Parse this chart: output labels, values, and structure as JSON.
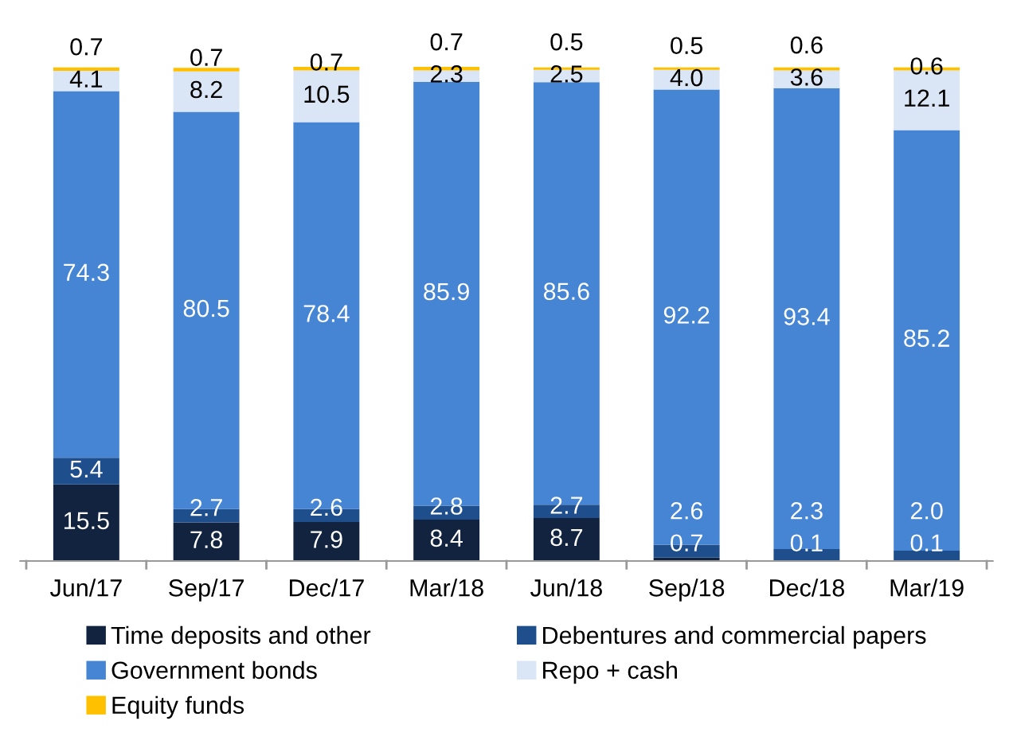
{
  "chart_data": {
    "type": "bar",
    "stacked": true,
    "legend": "bottom",
    "grid": false,
    "categories": [
      "Jun/17",
      "Sep/17",
      "Dec/17",
      "Mar/18",
      "Jun/18",
      "Sep/18",
      "Dec/18",
      "Mar/19"
    ],
    "series": [
      {
        "name": "Time deposits and other",
        "color": "#12233f",
        "values": [
          15.5,
          7.8,
          7.9,
          8.4,
          8.7,
          0.7,
          0.1,
          0.1
        ],
        "value_labels": [
          "15.5",
          "7.8",
          "7.9",
          "8.4",
          "8.7",
          "0.7",
          "0.1",
          "0.1"
        ]
      },
      {
        "name": "Debentures and commercial papers",
        "color": "#1f4e8c",
        "values": [
          5.4,
          2.7,
          2.6,
          2.8,
          2.7,
          2.6,
          2.3,
          2.0
        ],
        "value_labels": [
          "5.4",
          "2.7",
          "2.6",
          "2.8",
          "2.7",
          "2.6",
          "2.3",
          "2.0"
        ]
      },
      {
        "name": "Government bonds",
        "color": "#4585d4",
        "values": [
          74.3,
          80.5,
          78.4,
          85.9,
          85.6,
          92.2,
          93.4,
          85.2
        ],
        "value_labels": [
          "74.3",
          "80.5",
          "78.4",
          "85.9",
          "85.6",
          "92.2",
          "93.4",
          "85.2"
        ]
      },
      {
        "name": "Repo + cash",
        "color": "#dae6f5",
        "values": [
          4.1,
          8.2,
          10.5,
          2.3,
          2.5,
          4.0,
          3.6,
          12.1
        ],
        "value_labels": [
          "4.1",
          "8.2",
          "10.5",
          "2.3",
          "2.5",
          "4.0",
          "3.6",
          "12.1"
        ]
      },
      {
        "name": "Equity funds",
        "color": "#ffc000",
        "values": [
          0.7,
          0.7,
          0.7,
          0.7,
          0.5,
          0.5,
          0.6,
          0.6
        ],
        "value_labels": [
          "0.7",
          "0.7",
          "0.7",
          "0.7",
          "0.5",
          "0.5",
          "0.6",
          "0.6"
        ]
      }
    ]
  }
}
